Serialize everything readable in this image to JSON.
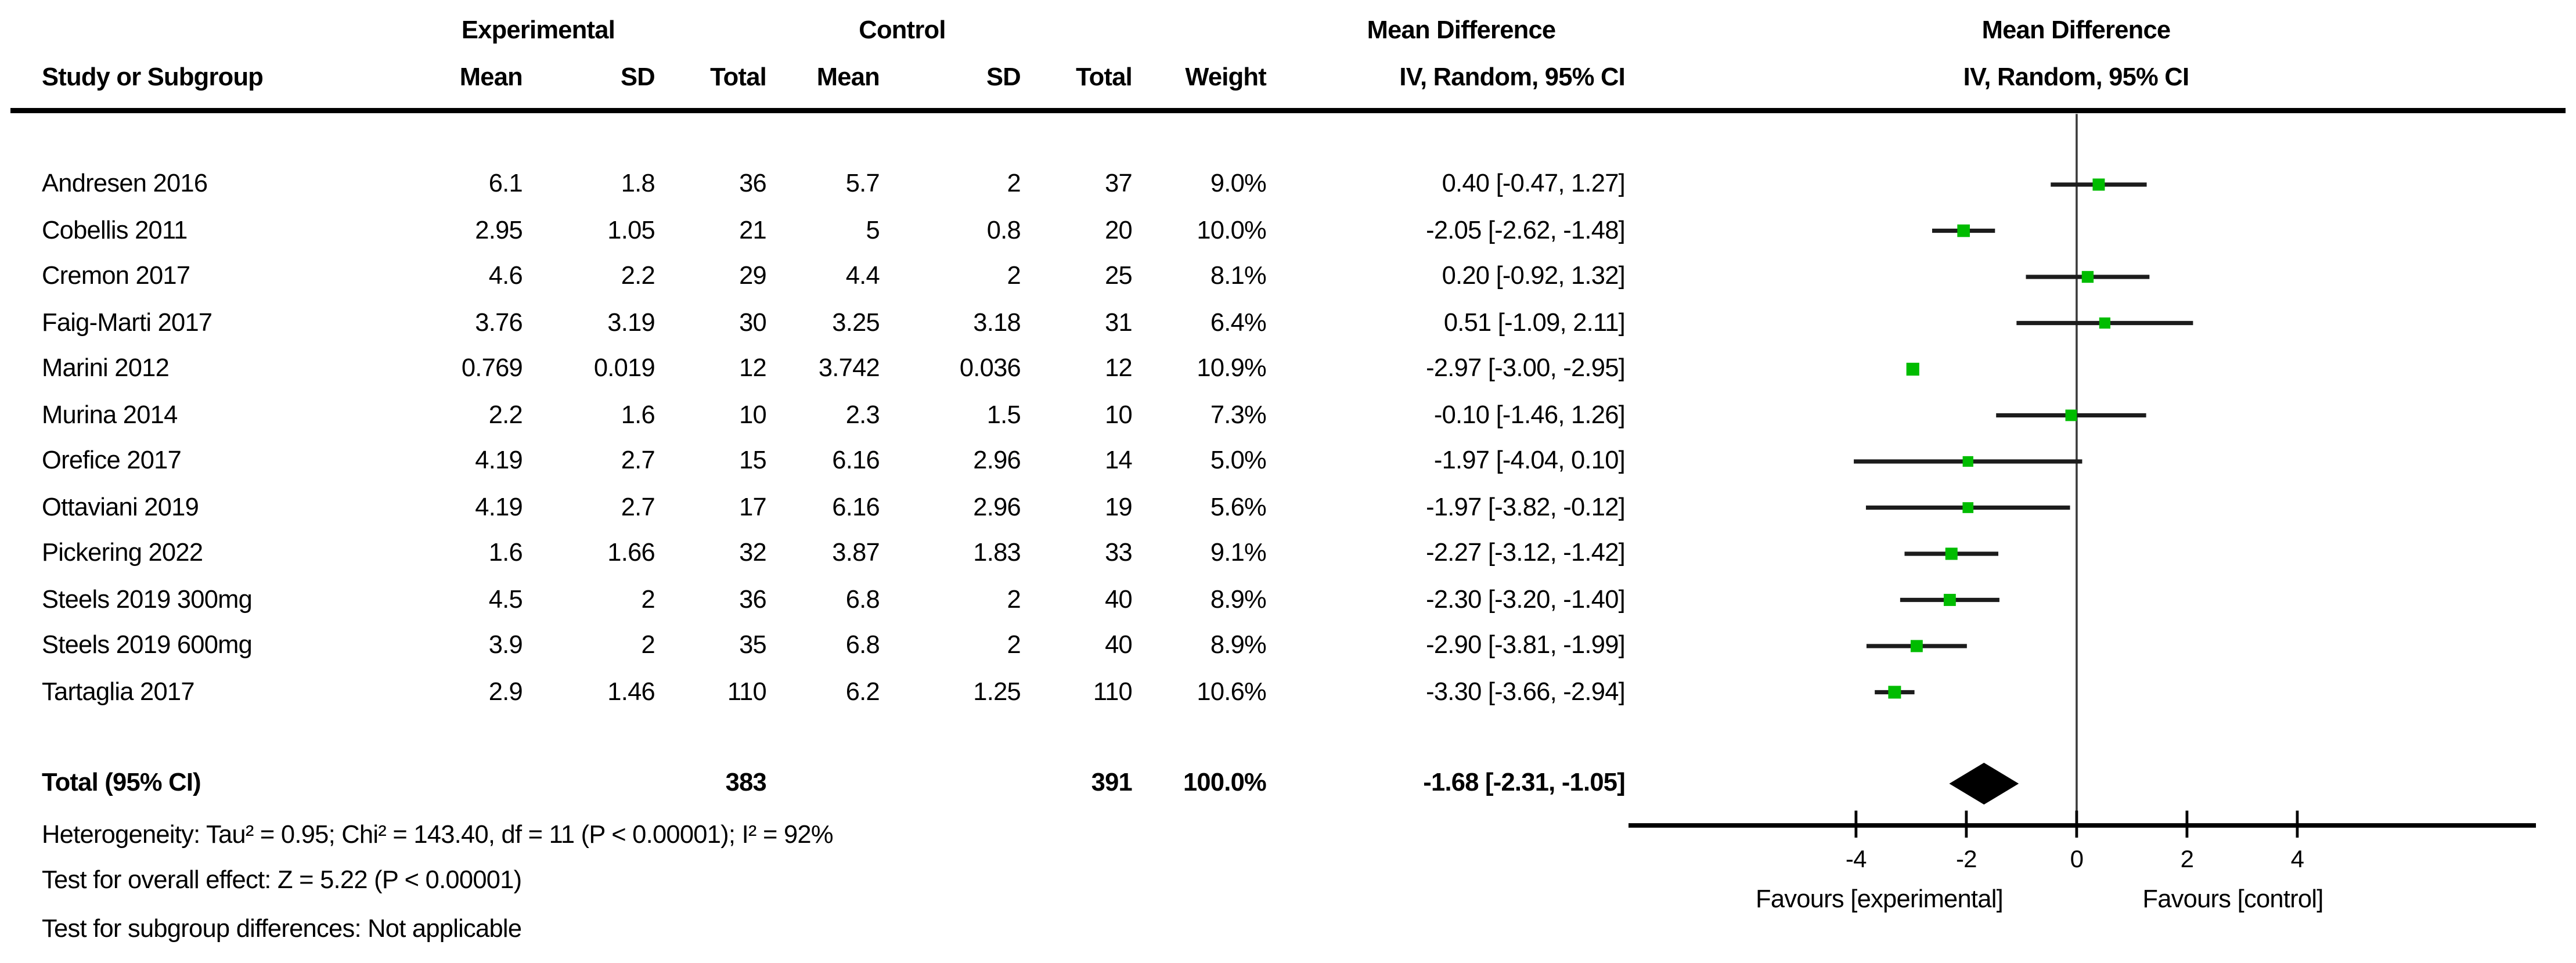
{
  "group_header": {
    "experimental": "Experimental",
    "control": "Control",
    "mean_difference_text": "Mean Difference",
    "mean_difference_plot": "Mean Difference"
  },
  "column_header": {
    "study": "Study or Subgroup",
    "mean_exp": "Mean",
    "sd_exp": "SD",
    "total_exp": "Total",
    "mean_ctrl": "Mean",
    "sd_ctrl": "SD",
    "total_ctrl": "Total",
    "weight": "Weight",
    "ci_text": "IV, Random, 95% CI",
    "ci_plot": "IV, Random, 95% CI"
  },
  "rows": [
    {
      "study": "Andresen 2016",
      "mean1": "6.1",
      "sd1": "1.8",
      "total1": "36",
      "mean2": "5.7",
      "sd2": "2",
      "total2": "37",
      "weight": "9.0%",
      "ci": "0.40 [-0.47, 1.27]"
    },
    {
      "study": "Cobellis 2011",
      "mean1": "2.95",
      "sd1": "1.05",
      "total1": "21",
      "mean2": "5",
      "sd2": "0.8",
      "total2": "20",
      "weight": "10.0%",
      "ci": "-2.05 [-2.62, -1.48]"
    },
    {
      "study": "Cremon 2017",
      "mean1": "4.6",
      "sd1": "2.2",
      "total1": "29",
      "mean2": "4.4",
      "sd2": "2",
      "total2": "25",
      "weight": "8.1%",
      "ci": "0.20 [-0.92, 1.32]"
    },
    {
      "study": "Faig-Marti 2017",
      "mean1": "3.76",
      "sd1": "3.19",
      "total1": "30",
      "mean2": "3.25",
      "sd2": "3.18",
      "total2": "31",
      "weight": "6.4%",
      "ci": "0.51 [-1.09, 2.11]"
    },
    {
      "study": "Marini 2012",
      "mean1": "0.769",
      "sd1": "0.019",
      "total1": "12",
      "mean2": "3.742",
      "sd2": "0.036",
      "total2": "12",
      "weight": "10.9%",
      "ci": "-2.97 [-3.00, -2.95]"
    },
    {
      "study": "Murina 2014",
      "mean1": "2.2",
      "sd1": "1.6",
      "total1": "10",
      "mean2": "2.3",
      "sd2": "1.5",
      "total2": "10",
      "weight": "7.3%",
      "ci": "-0.10 [-1.46, 1.26]"
    },
    {
      "study": "Orefice 2017",
      "mean1": "4.19",
      "sd1": "2.7",
      "total1": "15",
      "mean2": "6.16",
      "sd2": "2.96",
      "total2": "14",
      "weight": "5.0%",
      "ci": "-1.97 [-4.04, 0.10]"
    },
    {
      "study": "Ottaviani 2019",
      "mean1": "4.19",
      "sd1": "2.7",
      "total1": "17",
      "mean2": "6.16",
      "sd2": "2.96",
      "total2": "19",
      "weight": "5.6%",
      "ci": "-1.97 [-3.82, -0.12]"
    },
    {
      "study": "Pickering 2022",
      "mean1": "1.6",
      "sd1": "1.66",
      "total1": "32",
      "mean2": "3.87",
      "sd2": "1.83",
      "total2": "33",
      "weight": "9.1%",
      "ci": "-2.27 [-3.12, -1.42]"
    },
    {
      "study": "Steels 2019 300mg",
      "mean1": "4.5",
      "sd1": "2",
      "total1": "36",
      "mean2": "6.8",
      "sd2": "2",
      "total2": "40",
      "weight": "8.9%",
      "ci": "-2.30 [-3.20, -1.40]"
    },
    {
      "study": "Steels 2019 600mg",
      "mean1": "3.9",
      "sd1": "2",
      "total1": "35",
      "mean2": "6.8",
      "sd2": "2",
      "total2": "40",
      "weight": "8.9%",
      "ci": "-2.90 [-3.81, -1.99]"
    },
    {
      "study": "Tartaglia 2017",
      "mean1": "2.9",
      "sd1": "1.46",
      "total1": "110",
      "mean2": "6.2",
      "sd2": "1.25",
      "total2": "110",
      "weight": "10.6%",
      "ci": "-3.30 [-3.66, -2.94]"
    }
  ],
  "total_row": {
    "label": "Total (95% CI)",
    "total1": "383",
    "total2": "391",
    "weight": "100.0%",
    "ci": "-1.68 [-2.31, -1.05]"
  },
  "footer": {
    "heterogeneity": "Heterogeneity: Tau² = 0.95; Chi² = 143.40, df = 11 (P < 0.00001); I² = 92%",
    "overall_effect": "Test for overall effect: Z = 5.22 (P < 0.00001)",
    "subgroup": "Test for subgroup differences: Not applicable"
  },
  "chart_data": {
    "type": "forest",
    "effect_measure": "Mean Difference (IV, Random, 95% CI)",
    "x_ticks": [
      -4,
      -2,
      0,
      2,
      4
    ],
    "x_axis_range": [
      -8.1,
      8.3
    ],
    "favours_left": "Favours [experimental]",
    "favours_right": "Favours [control]",
    "studies": [
      {
        "name": "Andresen 2016",
        "md": 0.4,
        "lo": -0.47,
        "hi": 1.27,
        "weight": 9.0
      },
      {
        "name": "Cobellis 2011",
        "md": -2.05,
        "lo": -2.62,
        "hi": -1.48,
        "weight": 10.0
      },
      {
        "name": "Cremon 2017",
        "md": 0.2,
        "lo": -0.92,
        "hi": 1.32,
        "weight": 8.1
      },
      {
        "name": "Faig-Marti 2017",
        "md": 0.51,
        "lo": -1.09,
        "hi": 2.11,
        "weight": 6.4
      },
      {
        "name": "Marini 2012",
        "md": -2.97,
        "lo": -3.0,
        "hi": -2.95,
        "weight": 10.9
      },
      {
        "name": "Murina 2014",
        "md": -0.1,
        "lo": -1.46,
        "hi": 1.26,
        "weight": 7.3
      },
      {
        "name": "Orefice 2017",
        "md": -1.97,
        "lo": -4.04,
        "hi": 0.1,
        "weight": 5.0
      },
      {
        "name": "Ottaviani 2019",
        "md": -1.97,
        "lo": -3.82,
        "hi": -0.12,
        "weight": 5.6
      },
      {
        "name": "Pickering 2022",
        "md": -2.27,
        "lo": -3.12,
        "hi": -1.42,
        "weight": 9.1
      },
      {
        "name": "Steels 2019 300mg",
        "md": -2.3,
        "lo": -3.2,
        "hi": -1.4,
        "weight": 8.9
      },
      {
        "name": "Steels 2019 600mg",
        "md": -2.9,
        "lo": -3.81,
        "hi": -1.99,
        "weight": 8.9
      },
      {
        "name": "Tartaglia 2017",
        "md": -3.3,
        "lo": -3.66,
        "hi": -2.94,
        "weight": 10.6
      }
    ],
    "total": {
      "md": -1.68,
      "lo": -2.31,
      "hi": -1.05
    },
    "square_color": "#00bc00",
    "line_color": "#1c1c1c",
    "axis_color": "#000000",
    "zero_line_color": "#3c3c3c"
  }
}
